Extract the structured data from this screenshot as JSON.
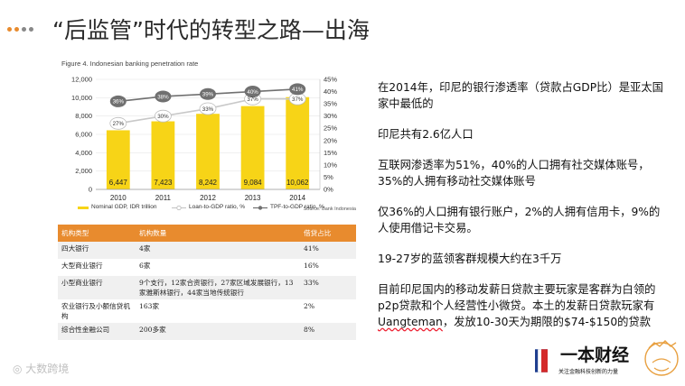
{
  "slide": {
    "title": "“后监管”时代的转型之路—出海",
    "dot_colors": [
      "#e88b2e",
      "#e88b2e",
      "#888888",
      "#888888"
    ]
  },
  "chart_data": {
    "type": "bar",
    "title": "Figure 4. Indonesian banking penetration rate",
    "categories": [
      "2010",
      "2011",
      "2012",
      "2013",
      "2014"
    ],
    "series": [
      {
        "name": "Nominal GDP, IDR trillion",
        "values": [
          6447,
          7423,
          8242,
          9084,
          10062
        ],
        "value_labels": [
          "6,447",
          "7,423",
          "8,242",
          "9,084",
          "10,062"
        ],
        "color": "#f7d417",
        "axis": "left"
      },
      {
        "name": "Loan-to-GDP ratio, %",
        "values": [
          27,
          30,
          33,
          37,
          37
        ],
        "value_labels": [
          "27%",
          "30%",
          "33%",
          "37%",
          "37%"
        ],
        "color": "#c8c8c8",
        "axis": "right"
      },
      {
        "name": "TPF-to-GDP ratio, %",
        "values": [
          36,
          38,
          39,
          40,
          41
        ],
        "value_labels": [
          "36%",
          "38%",
          "39%",
          "40%",
          "41%"
        ],
        "color": "#707070",
        "axis": "right"
      }
    ],
    "y_left_ticks": [
      "0",
      "2,000",
      "4,000",
      "6,000",
      "8,000",
      "10,000",
      "12,000"
    ],
    "y_right_ticks": [
      "0%",
      "5%",
      "10%",
      "15%",
      "20%",
      "25%",
      "30%",
      "35%",
      "40%",
      "45%"
    ],
    "ylim_left": [
      0,
      12000
    ],
    "ylim_right": [
      0,
      45
    ],
    "source": "Source: Bank Indonesia",
    "legend": [
      "Nominal GDP, IDR trillion",
      "Loan-to-GDP ratio, %",
      "TPF-to-GDP ratio, %"
    ]
  },
  "table": {
    "headers": [
      "机构类型",
      "机构数量",
      "借贷占比"
    ],
    "rows": [
      [
        "四大银行",
        "4家",
        "41%"
      ],
      [
        "大型商业银行",
        "6家",
        "16%"
      ],
      [
        "小型商业银行",
        "9个支行，12家合资银行，27家区域发展银行，13家雅斯林银行，44家当地传统银行",
        "33%"
      ],
      [
        "农业银行及小额信贷机构",
        "163家",
        "2%"
      ],
      [
        "综合性金融公司",
        "200多家",
        "8%"
      ]
    ]
  },
  "points": [
    "在2014年，印尼的银行渗透率（贷款占GDP比）是亚太国家中最低的",
    "印尼共有2.6亿人口",
    "互联网渗透率为51%，40%的人口拥有社交媒体账号，35%的人拥有移动社交媒体账号",
    "仅36%的人口拥有银行账户，2%的人拥有信用卡，9%的人使用借记卡交易。",
    "19-27岁的蓝领客群规模大约在3千万"
  ],
  "last_point": {
    "part1": "目前印尼国内的移动发薪日贷款主要玩家是客群为白领的p2p贷款和个人经营性小微贷。本土的发薪日贷款玩家有",
    "highlight": "Uangteman",
    "part2": "，发放10-30天为期限的$74-$150的贷款"
  },
  "brand": {
    "name": "一本财经",
    "tagline": "关注金融科技创新的力量",
    "stamp_text": "一本财经"
  },
  "watermark": "大数跨境"
}
